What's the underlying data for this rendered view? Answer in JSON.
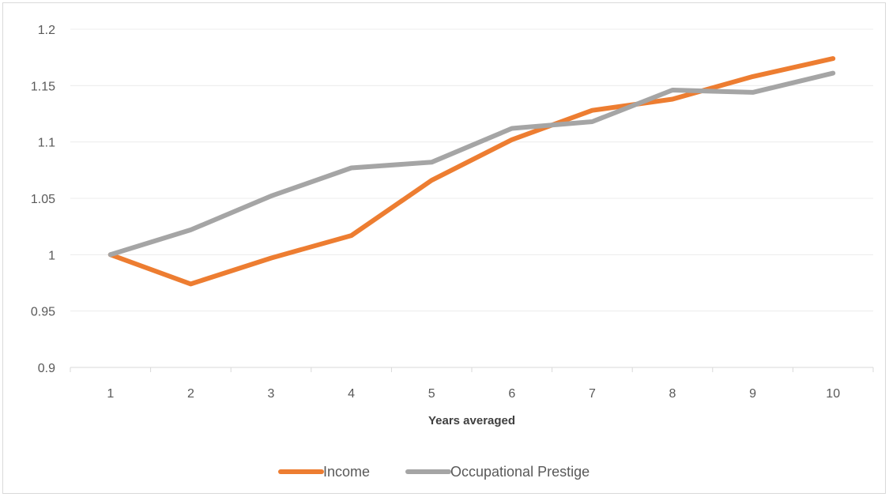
{
  "chart_data": {
    "type": "line",
    "x": [
      1,
      2,
      3,
      4,
      5,
      6,
      7,
      8,
      9,
      10
    ],
    "xlabel": "Years averaged",
    "ylabel": "",
    "ylim": [
      0.9,
      1.2
    ],
    "yticks": [
      "0.9",
      "0.95",
      "1",
      "1.05",
      "1.1",
      "1.15",
      "1.2"
    ],
    "xticks": [
      "1",
      "2",
      "3",
      "4",
      "5",
      "6",
      "7",
      "8",
      "9",
      "10"
    ],
    "grid": "horizontal",
    "legend_position": "bottom",
    "series": [
      {
        "name": "Income",
        "color": "#ed7d31",
        "values": [
          1.0,
          0.974,
          0.997,
          1.017,
          1.066,
          1.102,
          1.128,
          1.138,
          1.158,
          1.174
        ]
      },
      {
        "name": "Occupational Prestige",
        "color": "#a5a5a5",
        "values": [
          1.0,
          1.022,
          1.052,
          1.077,
          1.082,
          1.112,
          1.118,
          1.146,
          1.144,
          1.161
        ]
      }
    ]
  }
}
